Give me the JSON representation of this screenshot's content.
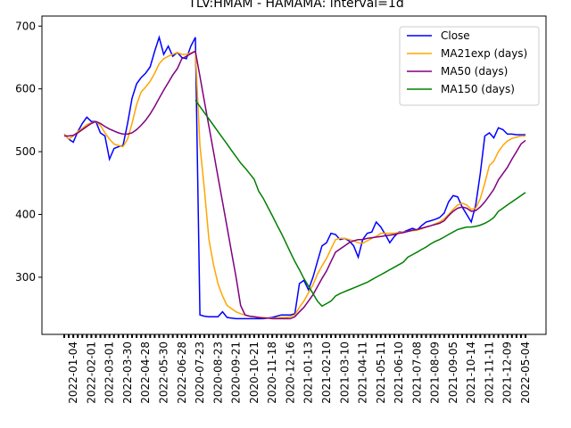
{
  "chart_data": {
    "type": "line",
    "title": "TLV:HMAM - HAMAMA: interval=1d",
    "categories": [
      null,
      null,
      "2022-01-04",
      null,
      null,
      null,
      "2022-02-01",
      null,
      null,
      null,
      "2022-03-01",
      null,
      null,
      null,
      "2022-03-30",
      null,
      null,
      null,
      "2022-04-28",
      null,
      null,
      null,
      "2022-05-30",
      null,
      null,
      null,
      "2022-06-28",
      null,
      null,
      null,
      "2020-07-23",
      null,
      null,
      null,
      "2020-08-23",
      null,
      null,
      null,
      "2020-09-21",
      null,
      null,
      null,
      "2020-10-21",
      null,
      null,
      null,
      "2020-11-18",
      null,
      null,
      null,
      "2020-12-16",
      null,
      null,
      null,
      "2021-01-13",
      null,
      null,
      null,
      "2021-02-10",
      null,
      null,
      null,
      "2021-03-10",
      null,
      null,
      null,
      "2021-04-11",
      null,
      null,
      null,
      "2021-05-11",
      null,
      null,
      null,
      "2021-06-10",
      null,
      null,
      null,
      "2021-07-08",
      null,
      null,
      null,
      "2021-08-09",
      null,
      null,
      null,
      "2021-09-05",
      null,
      null,
      null,
      "2021-10-14",
      null,
      null,
      null,
      "2021-11-11",
      null,
      null,
      null,
      "2021-12-09",
      null,
      null,
      null,
      "2022-05-04"
    ],
    "series": [
      {
        "name": "Close",
        "color": "#0000ff",
        "values": [
          528,
          520,
          515,
          532,
          545,
          555,
          548,
          548,
          530,
          525,
          488,
          505,
          508,
          510,
          545,
          585,
          608,
          618,
          625,
          635,
          660,
          682,
          655,
          668,
          652,
          658,
          650,
          648,
          668,
          682,
          240,
          238,
          237,
          237,
          237,
          245,
          236,
          235,
          234,
          234,
          234,
          234,
          234,
          234,
          234,
          235,
          236,
          238,
          240,
          240,
          240,
          242,
          290,
          295,
          280,
          300,
          325,
          350,
          355,
          370,
          368,
          360,
          362,
          358,
          350,
          332,
          360,
          370,
          372,
          388,
          380,
          368,
          355,
          365,
          372,
          372,
          375,
          378,
          375,
          382,
          388,
          390,
          392,
          395,
          402,
          420,
          430,
          428,
          412,
          400,
          388,
          415,
          465,
          525,
          530,
          522,
          538,
          535,
          528,
          528,
          527,
          527,
          527
        ]
      },
      {
        "name": "MA21exp (days)",
        "color": "#ffa500",
        "values": [
          528,
          520,
          525,
          532,
          537,
          543,
          546,
          548,
          542,
          530,
          520,
          512,
          510,
          508,
          520,
          545,
          575,
          595,
          603,
          612,
          625,
          640,
          648,
          652,
          655,
          658,
          655,
          655,
          657,
          660,
          510,
          440,
          360,
          320,
          290,
          270,
          255,
          250,
          245,
          242,
          240,
          238,
          237,
          236,
          236,
          235,
          235,
          235,
          236,
          236,
          237,
          240,
          252,
          262,
          275,
          288,
          305,
          318,
          330,
          345,
          360,
          362,
          362,
          360,
          358,
          355,
          354,
          358,
          362,
          365,
          370,
          370,
          370,
          370,
          371,
          372,
          373,
          374,
          375,
          377,
          380,
          382,
          385,
          388,
          393,
          400,
          408,
          415,
          418,
          415,
          408,
          410,
          425,
          450,
          478,
          485,
          500,
          510,
          517,
          521,
          523,
          525,
          525
        ]
      },
      {
        "name": "MA50 (days)",
        "color": "#800080",
        "values": [
          525,
          525,
          526,
          530,
          535,
          540,
          545,
          548,
          545,
          540,
          536,
          533,
          530,
          528,
          528,
          530,
          535,
          542,
          550,
          560,
          572,
          585,
          598,
          610,
          622,
          632,
          648,
          652,
          656,
          660,
          620,
          580,
          540,
          500,
          460,
          420,
          380,
          340,
          300,
          255,
          240,
          238,
          237,
          236,
          235,
          235,
          234,
          234,
          234,
          234,
          234,
          237,
          245,
          252,
          262,
          272,
          285,
          298,
          310,
          325,
          340,
          345,
          350,
          355,
          358,
          360,
          360,
          362,
          363,
          364,
          365,
          366,
          367,
          368,
          370,
          371,
          373,
          375,
          376,
          378,
          380,
          382,
          384,
          386,
          390,
          398,
          405,
          410,
          412,
          410,
          405,
          406,
          412,
          420,
          430,
          440,
          455,
          465,
          475,
          488,
          500,
          512,
          518
        ]
      },
      {
        "name": "MA150 (days)",
        "color": "#008000",
        "values": [
          null,
          null,
          null,
          null,
          null,
          null,
          null,
          null,
          null,
          null,
          null,
          null,
          null,
          null,
          null,
          null,
          null,
          null,
          null,
          null,
          null,
          null,
          null,
          null,
          null,
          null,
          null,
          null,
          null,
          582,
          572,
          562,
          552,
          542,
          532,
          522,
          512,
          502,
          492,
          482,
          474,
          465,
          456,
          437,
          426,
          412,
          398,
          384,
          370,
          355,
          340,
          325,
          312,
          298,
          286,
          274,
          262,
          254,
          258,
          262,
          270,
          274,
          277,
          280,
          283,
          286,
          289,
          292,
          296,
          300,
          304,
          308,
          312,
          316,
          320,
          324,
          332,
          336,
          340,
          344,
          348,
          353,
          357,
          360,
          364,
          368,
          372,
          376,
          378,
          380,
          380,
          381,
          383,
          386,
          390,
          395,
          405,
          410,
          415,
          420,
          425,
          430,
          435
        ]
      }
    ],
    "ylim": [
      209,
      716
    ],
    "yticks": [
      300,
      400,
      500,
      600,
      700
    ],
    "legend": "upper right"
  }
}
